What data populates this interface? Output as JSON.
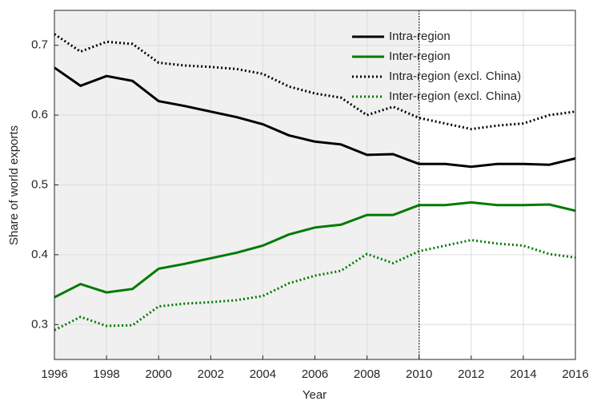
{
  "chart_data": {
    "type": "line",
    "x_label": "Year",
    "y_label": "Share of world exports",
    "x": [
      1996,
      1997,
      1998,
      1999,
      2000,
      2001,
      2002,
      2003,
      2004,
      2005,
      2006,
      2007,
      2008,
      2009,
      2010,
      2011,
      2012,
      2013,
      2014,
      2015,
      2016
    ],
    "series": [
      {
        "name": "Intra-region",
        "color": "#000000",
        "dash": "solid",
        "values": [
          0.668,
          0.642,
          0.656,
          0.649,
          0.62,
          0.613,
          0.605,
          0.597,
          0.587,
          0.571,
          0.562,
          0.558,
          0.543,
          0.544,
          0.53,
          0.53,
          0.526,
          0.53,
          0.53,
          0.529,
          0.538
        ]
      },
      {
        "name": "Inter-region",
        "color": "#007a00",
        "dash": "solid",
        "values": [
          0.339,
          0.358,
          0.346,
          0.351,
          0.38,
          0.387,
          0.395,
          0.403,
          0.413,
          0.429,
          0.439,
          0.443,
          0.457,
          0.457,
          0.471,
          0.471,
          0.475,
          0.471,
          0.471,
          0.472,
          0.463
        ]
      },
      {
        "name": "Intra-region (excl. China)",
        "color": "#000000",
        "dash": "dotted",
        "values": [
          0.716,
          0.691,
          0.705,
          0.702,
          0.675,
          0.671,
          0.669,
          0.666,
          0.659,
          0.641,
          0.631,
          0.625,
          0.6,
          0.612,
          0.596,
          0.588,
          0.58,
          0.585,
          0.588,
          0.6,
          0.605
        ]
      },
      {
        "name": "Inter-region (excl. China)",
        "color": "#007a00",
        "dash": "dotted",
        "values": [
          0.292,
          0.311,
          0.298,
          0.299,
          0.326,
          0.33,
          0.332,
          0.335,
          0.341,
          0.359,
          0.37,
          0.377,
          0.401,
          0.388,
          0.405,
          0.413,
          0.421,
          0.416,
          0.413,
          0.401,
          0.396
        ]
      }
    ],
    "xlim": [
      1996,
      2016
    ],
    "xticks": [
      1996,
      1998,
      2000,
      2002,
      2004,
      2006,
      2008,
      2010,
      2012,
      2014,
      2016
    ],
    "ylim": [
      0.25,
      0.75
    ],
    "yticks": [
      0.3,
      0.4,
      0.5,
      0.6,
      0.7
    ],
    "shaded_region": [
      1996,
      2010
    ],
    "grid": true,
    "legend": "upper right"
  }
}
